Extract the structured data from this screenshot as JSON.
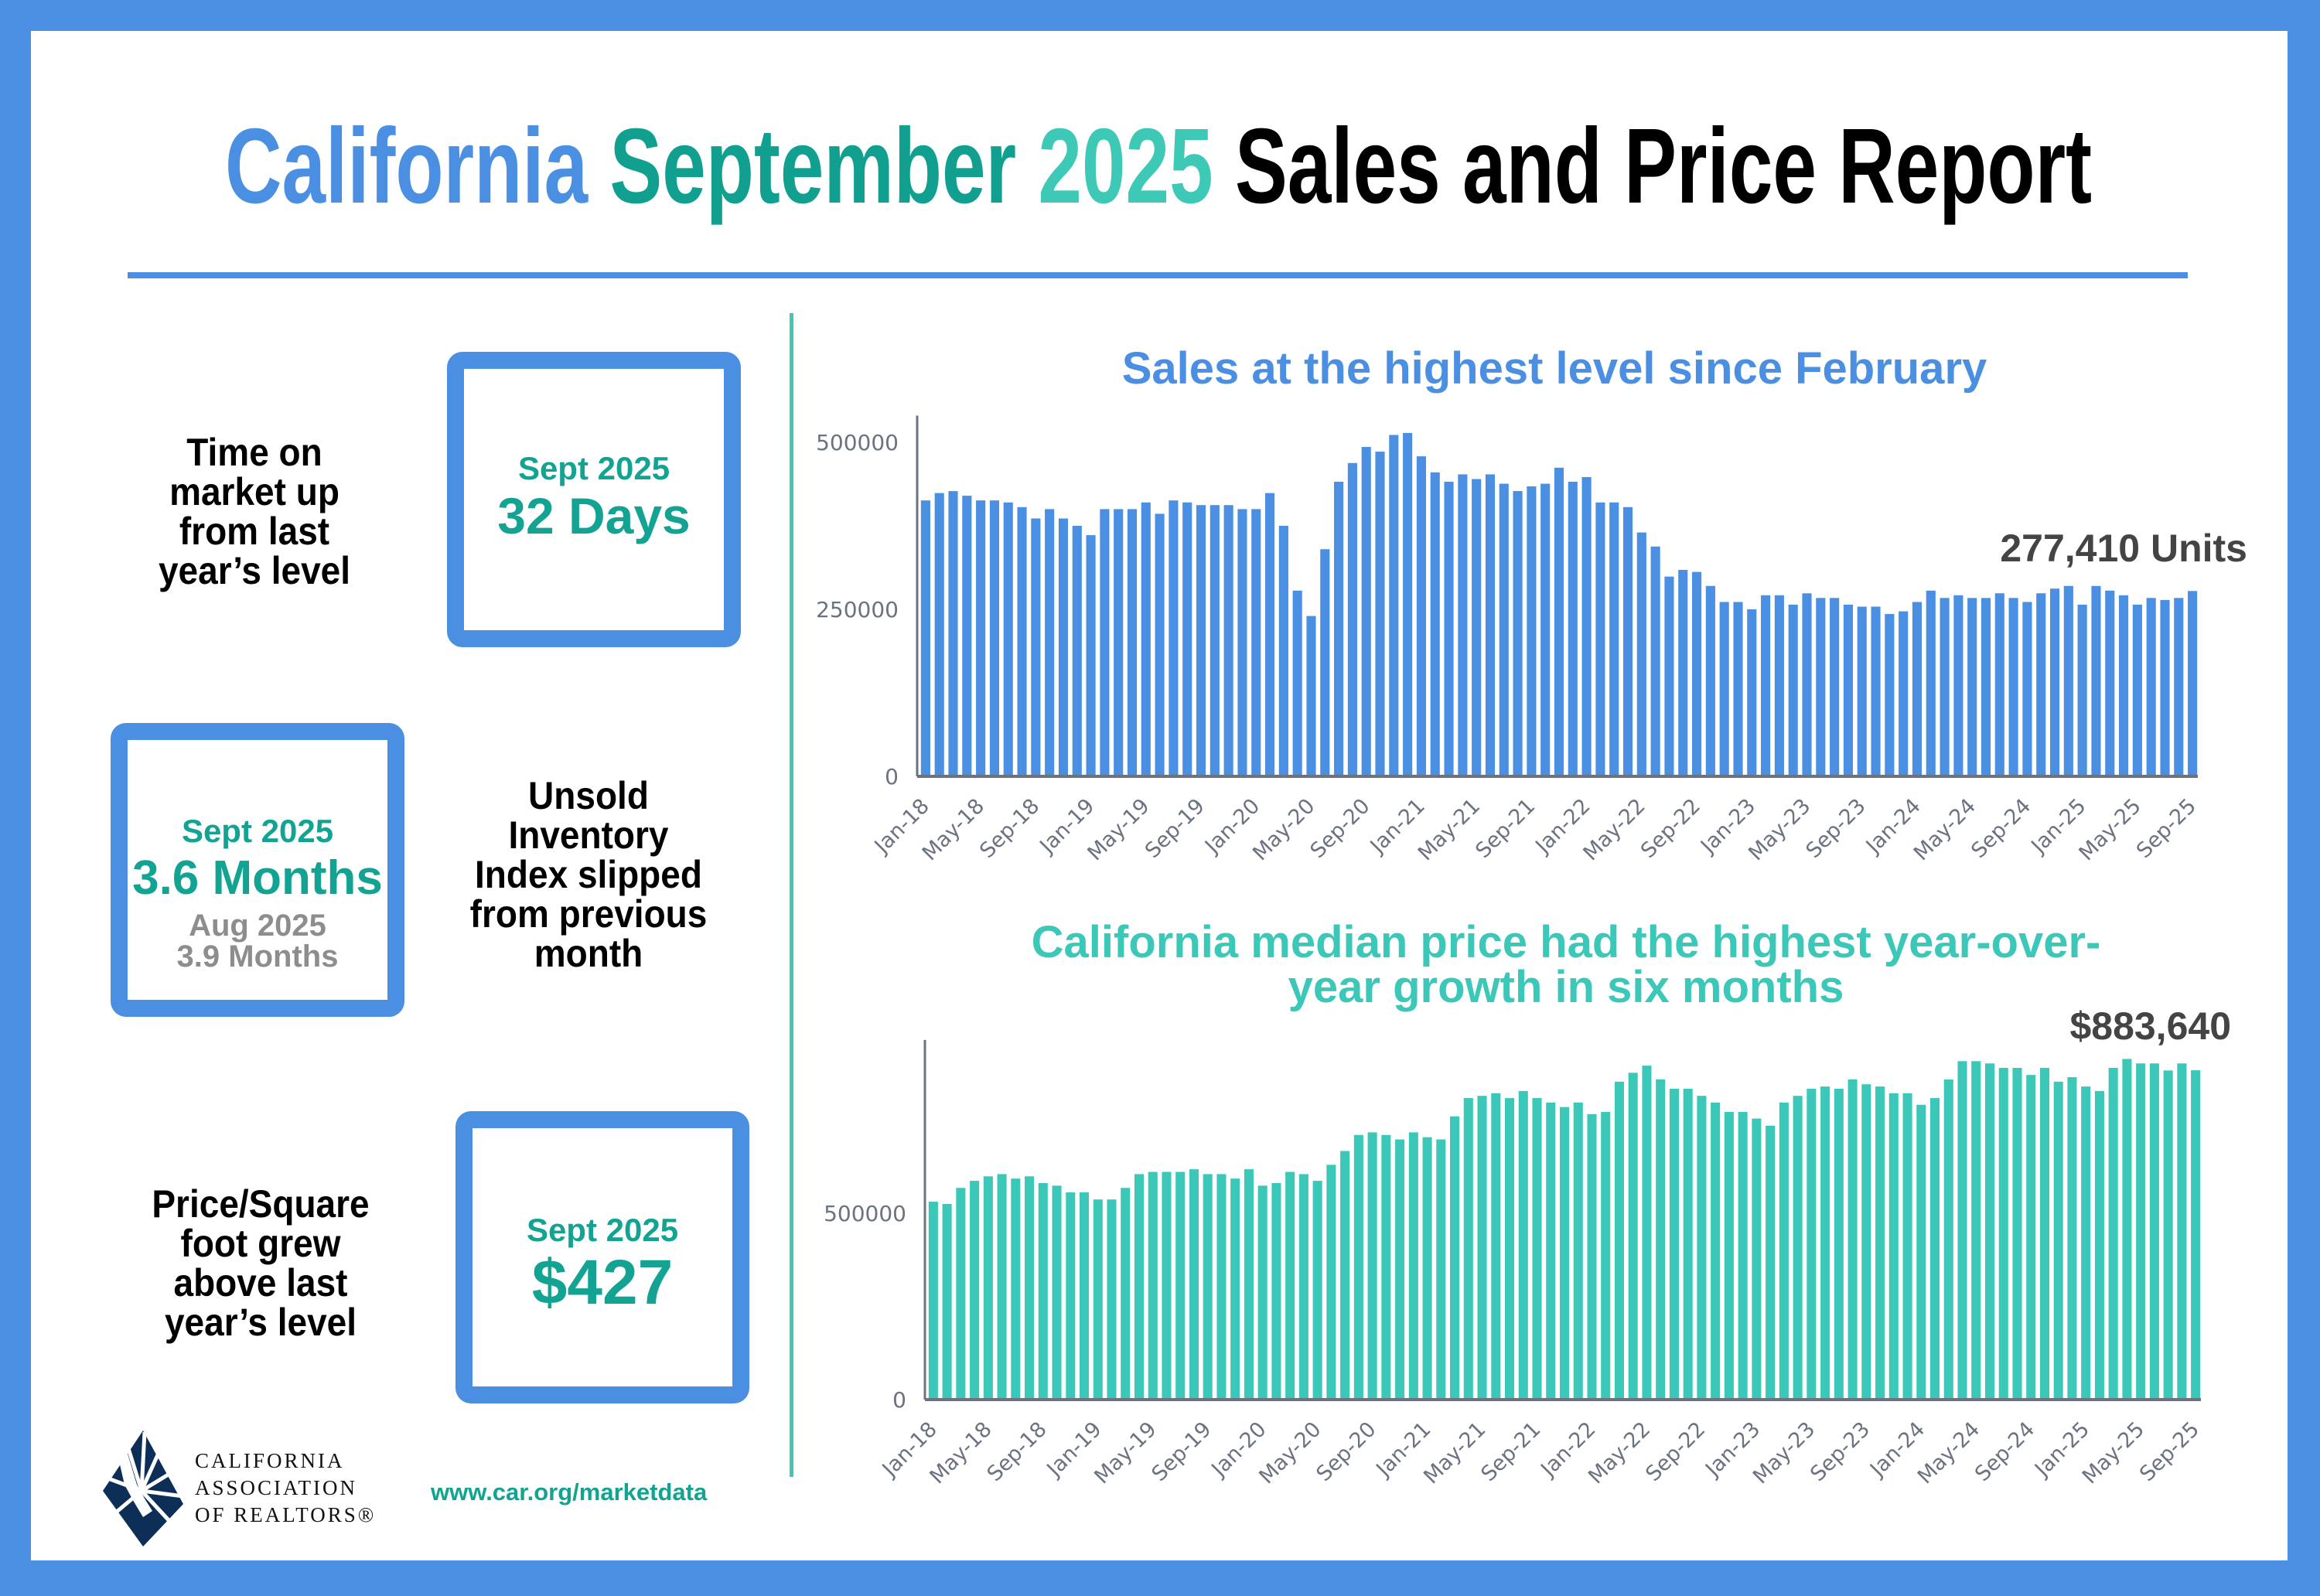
{
  "header": {
    "title_parts": [
      "California",
      "September",
      "2025",
      "Sales and Price Report"
    ],
    "colors": [
      "#4a8fe1",
      "#11a08f",
      "#3ec9b7",
      "#000000"
    ]
  },
  "stats": [
    {
      "label_lines": [
        "Time on",
        "market up",
        "from last",
        "year’s level"
      ],
      "period": "Sept 2025",
      "value": "32 Days"
    },
    {
      "label_lines": [
        "Unsold",
        "Inventory",
        "Index slipped",
        "from previous",
        "month"
      ],
      "period": "Sept 2025",
      "value": "3.6 Months",
      "prev_period": "Aug 2025",
      "prev_value": "3.9 Months"
    },
    {
      "label_lines": [
        "Price/Square",
        "foot grew",
        "above last",
        "year’s level"
      ],
      "period": "Sept 2025",
      "value": "$427"
    }
  ],
  "footer": {
    "logo_lines": [
      "CALIFORNIA",
      "ASSOCIATION",
      "OF REALTORS®"
    ],
    "url": "www.car.org/marketdata"
  },
  "chart_data": [
    {
      "type": "bar",
      "title": "Sales at the highest level since February",
      "annotation": "277,410 Units",
      "color": "#4a8fe1",
      "ylim": [
        0,
        540000
      ],
      "yticks": [
        0,
        250000,
        500000
      ],
      "ytick_labels": [
        "0",
        "250000",
        "500000"
      ],
      "xtick_labels": [
        "Jan-18",
        "May-18",
        "Sep-18",
        "Jan-19",
        "May-19",
        "Sep-19",
        "Jan-20",
        "May-20",
        "Sep-20",
        "Jan-21",
        "May-21",
        "Sep-21",
        "Jan-22",
        "May-22",
        "Sep-22",
        "Jan-23",
        "May-23",
        "Sep-23",
        "Jan-24",
        "May-24",
        "Sep-24",
        "Jan-25",
        "May-25",
        "Sep-25"
      ],
      "x_start": "Jan-18",
      "x_end": "Sep-25",
      "values": [
        413000,
        424000,
        427000,
        420000,
        413000,
        413000,
        410000,
        403000,
        386000,
        400000,
        386000,
        375000,
        361000,
        400000,
        400000,
        400000,
        410000,
        393000,
        413000,
        410000,
        406000,
        406000,
        406000,
        400000,
        400000,
        424000,
        375000,
        278000,
        240000,
        340000,
        441000,
        469000,
        493000,
        486000,
        511000,
        514000,
        479000,
        455000,
        441000,
        452000,
        445000,
        452000,
        438000,
        427000,
        434000,
        438000,
        462000,
        441000,
        448000,
        410000,
        410000,
        403000,
        365000,
        344000,
        299000,
        309000,
        306000,
        285000,
        261000,
        261000,
        250000,
        271000,
        271000,
        257000,
        274000,
        267000,
        267000,
        257000,
        254000,
        254000,
        243000,
        247000,
        261000,
        278000,
        267000,
        271000,
        267000,
        267000,
        274000,
        267000,
        261000,
        274000,
        281000,
        285000,
        257000,
        285000,
        278000,
        271000,
        257000,
        267000,
        264000,
        267000,
        277410
      ]
    },
    {
      "type": "bar",
      "title_lines": [
        "California median price had the highest year-over-",
        "year growth in six months"
      ],
      "annotation": "$883,640",
      "color": "#3cc8b8",
      "ylim": [
        0,
        965000
      ],
      "yticks": [
        0,
        500000
      ],
      "ytick_labels": [
        "0",
        "500000"
      ],
      "xtick_labels": [
        "Jan-18",
        "May-18",
        "Sep-18",
        "Jan-19",
        "May-19",
        "Sep-19",
        "Jan-20",
        "May-20",
        "Sep-20",
        "Jan-21",
        "May-21",
        "Sep-21",
        "Jan-22",
        "May-22",
        "Sep-22",
        "Jan-23",
        "May-23",
        "Sep-23",
        "Jan-24",
        "May-24",
        "Sep-24",
        "Jan-25",
        "May-25",
        "Sep-25"
      ],
      "x_start": "Jan-18",
      "x_end": "Sep-25",
      "values": [
        531000,
        525000,
        568000,
        587000,
        599000,
        605000,
        593000,
        599000,
        581000,
        574000,
        556000,
        556000,
        537000,
        537000,
        568000,
        605000,
        611000,
        611000,
        611000,
        618000,
        605000,
        605000,
        593000,
        618000,
        574000,
        581000,
        611000,
        605000,
        587000,
        630000,
        667000,
        710000,
        717000,
        710000,
        698000,
        717000,
        704000,
        698000,
        760000,
        809000,
        815000,
        822000,
        809000,
        828000,
        809000,
        797000,
        785000,
        797000,
        766000,
        772000,
        853000,
        877000,
        896000,
        859000,
        834000,
        834000,
        815000,
        797000,
        772000,
        772000,
        754000,
        735000,
        797000,
        815000,
        834000,
        840000,
        834000,
        859000,
        846000,
        840000,
        822000,
        822000,
        791000,
        809000,
        859000,
        908000,
        908000,
        902000,
        890000,
        890000,
        871000,
        890000,
        853000,
        865000,
        840000,
        828000,
        890000,
        914000,
        902000,
        902000,
        883000,
        902000,
        883640
      ]
    }
  ]
}
